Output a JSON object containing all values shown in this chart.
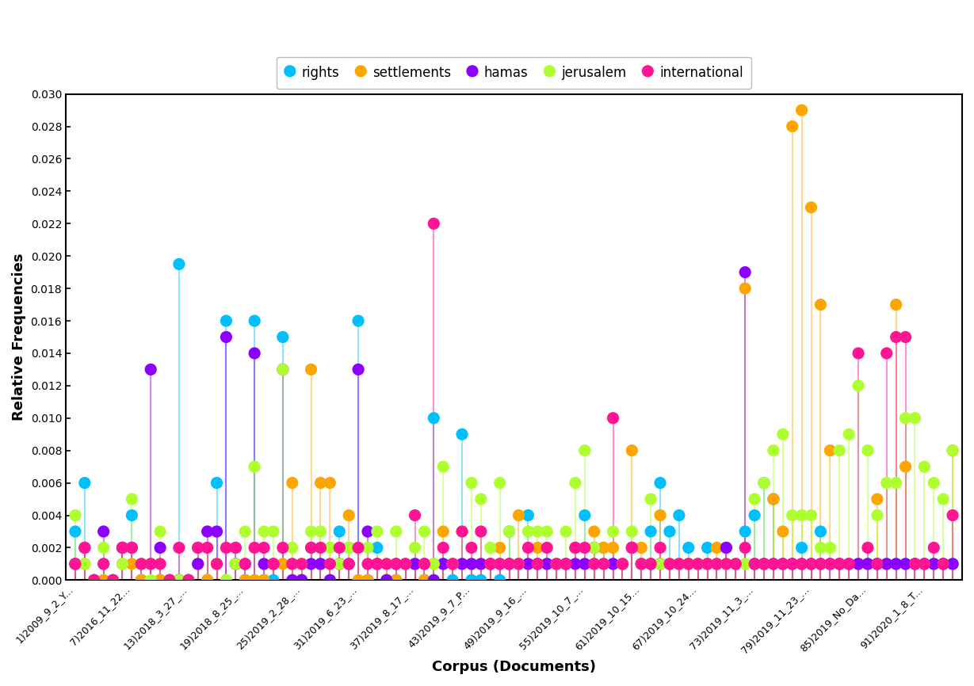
{
  "series": {
    "rights": {
      "color": "#00BFFF",
      "values": [
        0.003,
        0.006,
        0.0,
        0.001,
        0.0,
        0.002,
        0.004,
        0.0,
        0.001,
        0.0,
        0.0,
        0.0195,
        0.0,
        0.002,
        0.0,
        0.006,
        0.016,
        0.002,
        0.0,
        0.016,
        0.0,
        0.0,
        0.015,
        0.001,
        0.0,
        0.002,
        0.001,
        0.0,
        0.003,
        0.002,
        0.016,
        0.0,
        0.002,
        0.0,
        0.0,
        0.001,
        0.001,
        0.0,
        0.01,
        0.001,
        0.0,
        0.009,
        0.0,
        0.0,
        0.001,
        0.0,
        0.003,
        0.001,
        0.004,
        0.001,
        0.001,
        0.001,
        0.001,
        0.002,
        0.004,
        0.001,
        0.002,
        0.001,
        0.001,
        0.002,
        0.001,
        0.003,
        0.006,
        0.003,
        0.004,
        0.002,
        0.001,
        0.002,
        0.001,
        0.002,
        0.001,
        0.003,
        0.004,
        0.006,
        0.005,
        0.001,
        0.001,
        0.002,
        0.001,
        0.003,
        0.001,
        0.001,
        0.001,
        0.001,
        0.001,
        0.001,
        0.001,
        0.001,
        0.001,
        0.001,
        0.001,
        0.001,
        0.001,
        0.001
      ]
    },
    "settlements": {
      "color": "#FFA500",
      "values": [
        0.001,
        0.001,
        0.0,
        0.0,
        0.0,
        0.001,
        0.001,
        0.0,
        0.001,
        0.0,
        0.0,
        0.0,
        0.0,
        0.001,
        0.0,
        0.001,
        0.0,
        0.001,
        0.0,
        0.0,
        0.0,
        0.001,
        0.001,
        0.006,
        0.001,
        0.013,
        0.006,
        0.006,
        0.001,
        0.004,
        0.0,
        0.0,
        0.001,
        0.0,
        0.0,
        0.001,
        0.001,
        0.0,
        0.001,
        0.003,
        0.001,
        0.001,
        0.001,
        0.001,
        0.001,
        0.002,
        0.001,
        0.004,
        0.001,
        0.002,
        0.001,
        0.001,
        0.001,
        0.002,
        0.001,
        0.003,
        0.002,
        0.002,
        0.001,
        0.008,
        0.002,
        0.001,
        0.004,
        0.001,
        0.001,
        0.001,
        0.001,
        0.001,
        0.002,
        0.002,
        0.001,
        0.018,
        0.001,
        0.001,
        0.005,
        0.003,
        0.028,
        0.029,
        0.023,
        0.017,
        0.008,
        0.001,
        0.001,
        0.001,
        0.001,
        0.005,
        0.001,
        0.017,
        0.007,
        0.001,
        0.001,
        0.001,
        0.001,
        0.008
      ]
    },
    "hamas": {
      "color": "#8B00FF",
      "values": [
        0.001,
        0.002,
        0.0,
        0.003,
        0.0,
        0.002,
        0.002,
        0.001,
        0.013,
        0.002,
        0.0,
        0.0,
        0.0,
        0.001,
        0.003,
        0.003,
        0.015,
        0.001,
        0.001,
        0.014,
        0.001,
        0.001,
        0.013,
        0.0,
        0.0,
        0.001,
        0.001,
        0.0,
        0.001,
        0.001,
        0.013,
        0.003,
        0.001,
        0.0,
        0.001,
        0.001,
        0.001,
        0.001,
        0.0,
        0.001,
        0.001,
        0.001,
        0.001,
        0.001,
        0.001,
        0.001,
        0.001,
        0.001,
        0.001,
        0.001,
        0.001,
        0.001,
        0.001,
        0.001,
        0.001,
        0.002,
        0.001,
        0.001,
        0.001,
        0.002,
        0.001,
        0.001,
        0.001,
        0.001,
        0.001,
        0.001,
        0.001,
        0.001,
        0.001,
        0.002,
        0.001,
        0.019,
        0.001,
        0.001,
        0.001,
        0.001,
        0.001,
        0.001,
        0.001,
        0.001,
        0.001,
        0.001,
        0.001,
        0.001,
        0.001,
        0.001,
        0.001,
        0.001,
        0.001,
        0.001,
        0.001,
        0.001,
        0.001,
        0.001
      ]
    },
    "jerusalem": {
      "color": "#ADFF2F",
      "values": [
        0.004,
        0.001,
        0.0,
        0.002,
        0.0,
        0.001,
        0.005,
        0.001,
        0.0,
        0.003,
        0.0,
        0.0,
        0.0,
        0.002,
        0.002,
        0.001,
        0.0,
        0.001,
        0.003,
        0.007,
        0.003,
        0.003,
        0.013,
        0.002,
        0.001,
        0.003,
        0.003,
        0.002,
        0.001,
        0.002,
        0.002,
        0.002,
        0.003,
        0.001,
        0.003,
        0.001,
        0.002,
        0.003,
        0.001,
        0.007,
        0.001,
        0.003,
        0.006,
        0.005,
        0.002,
        0.006,
        0.003,
        0.001,
        0.003,
        0.003,
        0.003,
        0.001,
        0.003,
        0.006,
        0.008,
        0.002,
        0.001,
        0.003,
        0.001,
        0.003,
        0.001,
        0.005,
        0.001,
        0.001,
        0.001,
        0.001,
        0.001,
        0.001,
        0.001,
        0.001,
        0.001,
        0.001,
        0.005,
        0.006,
        0.008,
        0.009,
        0.004,
        0.004,
        0.004,
        0.002,
        0.002,
        0.008,
        0.009,
        0.012,
        0.008,
        0.004,
        0.006,
        0.006,
        0.01,
        0.01,
        0.007,
        0.006,
        0.005,
        0.008
      ]
    },
    "international": {
      "color": "#FF1493",
      "values": [
        0.001,
        0.002,
        0.0,
        0.001,
        0.0,
        0.002,
        0.002,
        0.001,
        0.001,
        0.001,
        0.0,
        0.002,
        0.0,
        0.002,
        0.002,
        0.001,
        0.002,
        0.002,
        0.001,
        0.002,
        0.002,
        0.001,
        0.002,
        0.001,
        0.001,
        0.002,
        0.002,
        0.001,
        0.002,
        0.001,
        0.002,
        0.001,
        0.001,
        0.001,
        0.001,
        0.001,
        0.004,
        0.001,
        0.022,
        0.002,
        0.001,
        0.003,
        0.002,
        0.003,
        0.001,
        0.001,
        0.001,
        0.001,
        0.002,
        0.001,
        0.002,
        0.001,
        0.001,
        0.002,
        0.002,
        0.001,
        0.001,
        0.01,
        0.001,
        0.002,
        0.001,
        0.001,
        0.002,
        0.001,
        0.001,
        0.001,
        0.001,
        0.001,
        0.001,
        0.001,
        0.001,
        0.002,
        0.001,
        0.001,
        0.001,
        0.001,
        0.001,
        0.001,
        0.001,
        0.001,
        0.001,
        0.001,
        0.001,
        0.014,
        0.002,
        0.001,
        0.014,
        0.015,
        0.015,
        0.001,
        0.001,
        0.002,
        0.001,
        0.004
      ]
    }
  },
  "x_tick_positions": [
    0,
    6,
    12,
    18,
    24,
    30,
    36,
    42,
    48,
    54,
    60,
    66,
    72,
    78,
    84,
    90
  ],
  "x_tick_labels": [
    "1)2009_9_2_Y...",
    "7)2016_11_22...",
    "13)2018_3_27_...",
    "19)2018_8_25_...",
    "25)2019_2_28_...",
    "31)2019_6_23_...",
    "37)2019_8_17_...",
    "43)2019_9_7_P...",
    "49)2019_9_16_...",
    "55)2019_10_7_...",
    "61)2019_10_15...",
    "67)2019_10_24...",
    "73)2019_11_3_...",
    "79)2019_11_23_...",
    "85)2019_No_Da...",
    "91)2020_1_8_T..."
  ],
  "ylabel": "Relative Frequencies",
  "xlabel": "Corpus (Documents)",
  "ylim": [
    0.0,
    0.03
  ],
  "yticks": [
    0.0,
    0.002,
    0.004,
    0.006,
    0.008,
    0.01,
    0.012,
    0.014,
    0.016,
    0.018,
    0.02,
    0.022,
    0.024,
    0.026,
    0.028,
    0.03
  ],
  "background_color": "#FFFFFF",
  "stem_alpha": 0.45,
  "marker_size": 120
}
